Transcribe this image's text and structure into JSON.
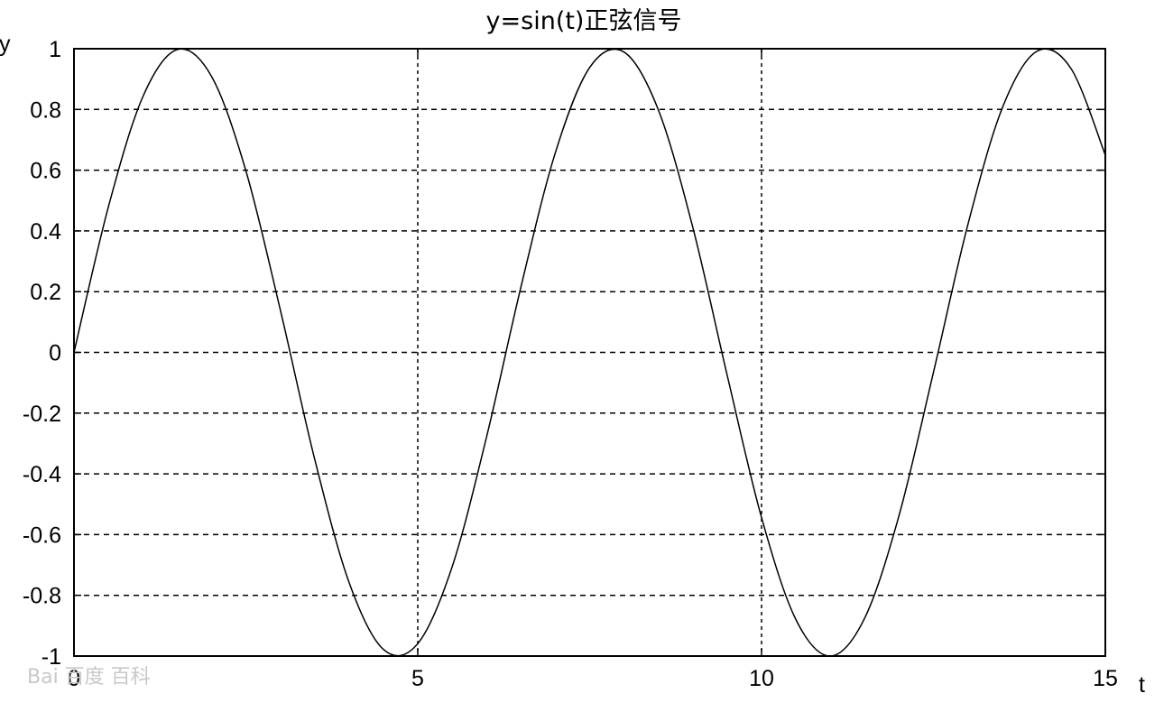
{
  "chart_data": {
    "type": "line",
    "title": "y=sin(t)正弦信号",
    "xlabel": "t",
    "ylabel": "y",
    "xlim": [
      0,
      15
    ],
    "ylim": [
      -1,
      1
    ],
    "x_ticks": [
      0,
      5,
      10,
      15
    ],
    "x_tick_labels": [
      "0",
      "5",
      "10",
      "15"
    ],
    "y_ticks": [
      1,
      0.8,
      0.6,
      0.4,
      0.2,
      0,
      -0.2,
      -0.4,
      -0.6,
      -0.8,
      -1
    ],
    "y_tick_labels": [
      "1",
      "0.8",
      "0.6",
      "0.4",
      "0.2",
      "0",
      "-0.2",
      "-0.4",
      "-0.6",
      "-0.8",
      "-1"
    ],
    "grid": true,
    "grid_style": "dashed",
    "legend": "none",
    "line_color": "#000000",
    "series": [
      {
        "x": [
          0,
          0.5,
          1,
          1.5,
          2,
          2.5,
          3,
          3.5,
          4,
          4.5,
          5,
          5.5,
          6,
          6.5,
          7,
          7.5,
          8,
          8.5,
          9,
          9.5,
          10,
          10.5,
          11,
          11.5,
          12,
          12.5,
          13,
          13.5,
          14,
          14.5,
          15
        ],
        "values": [
          0,
          0.479,
          0.841,
          0.997,
          0.909,
          0.598,
          0.141,
          -0.351,
          -0.757,
          -0.978,
          -0.959,
          -0.706,
          -0.279,
          0.215,
          0.657,
          0.938,
          0.989,
          0.798,
          0.412,
          -0.075,
          -0.544,
          -0.88,
          -1.0,
          -0.875,
          -0.537,
          -0.066,
          0.42,
          0.804,
          0.991,
          0.935,
          0.65
        ]
      }
    ]
  },
  "watermark": "Bai 百度 百科"
}
